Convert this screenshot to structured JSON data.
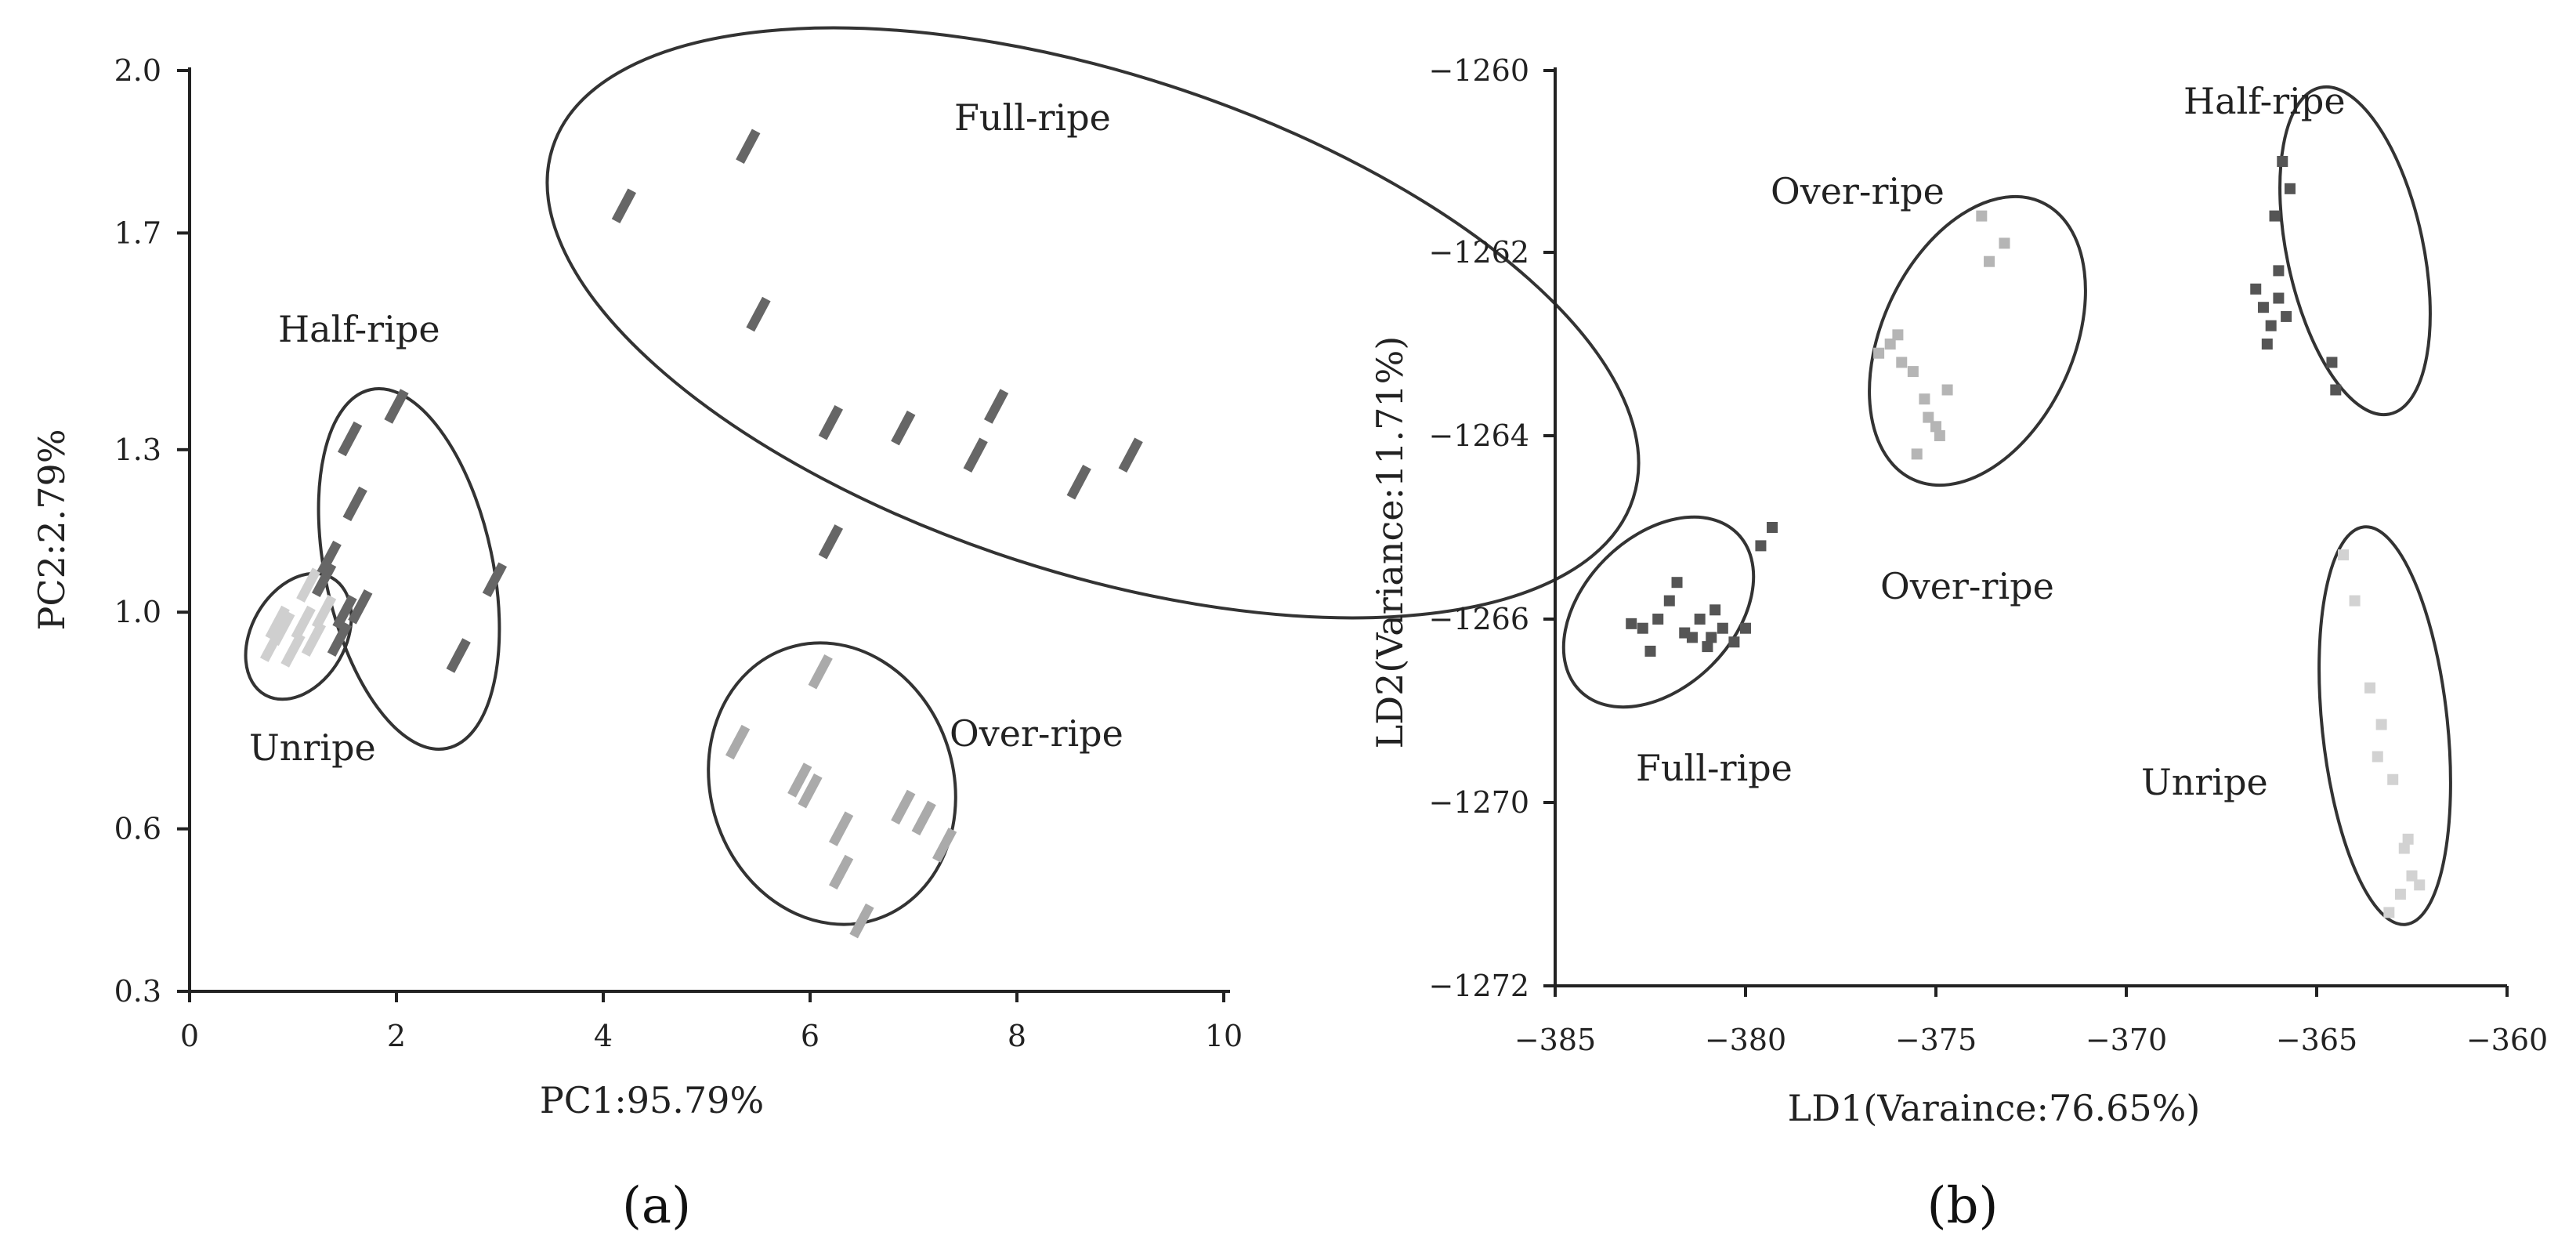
{
  "chart_data": [
    {
      "type": "scatter",
      "panel_label": "(a)",
      "xlabel": "PC1:95.79%",
      "ylabel": "PC2:2.79%",
      "xlim": [
        0,
        10
      ],
      "ylim": [
        0.3,
        2.0
      ],
      "xticks": [
        "0",
        "2",
        "4",
        "6",
        "8",
        "10"
      ],
      "yticks": [
        "0.3",
        "0.6",
        "1.0",
        "1.3",
        "1.7",
        "2.0"
      ],
      "series": [
        {
          "name": "Unripe",
          "color": "#cfcfcf",
          "x": [
            0.8,
            0.9,
            1.0,
            1.1,
            1.2,
            1.3,
            0.85,
            1.15
          ],
          "y": [
            0.94,
            0.97,
            0.93,
            0.98,
            0.95,
            1.0,
            0.98,
            1.05
          ]
        },
        {
          "name": "Half-ripe",
          "color": "#666666",
          "x": [
            1.3,
            1.35,
            1.45,
            1.5,
            1.6,
            1.55,
            1.65,
            2.0,
            2.6,
            2.95
          ],
          "y": [
            1.06,
            1.1,
            0.95,
            1.0,
            1.2,
            1.32,
            1.01,
            1.38,
            0.92,
            1.06
          ]
        },
        {
          "name": "Full-ripe",
          "color": "#666666",
          "x": [
            4.2,
            5.4,
            5.5,
            6.2,
            6.2,
            6.9,
            7.6,
            7.8,
            8.6,
            9.1
          ],
          "y": [
            1.75,
            1.86,
            1.55,
            1.35,
            1.13,
            1.34,
            1.29,
            1.38,
            1.24,
            1.29
          ]
        },
        {
          "name": "Over-ripe",
          "color": "#aaaaaa",
          "x": [
            5.3,
            5.9,
            6.0,
            6.3,
            6.5,
            6.9,
            7.1,
            7.3,
            6.1,
            6.3
          ],
          "y": [
            0.76,
            0.69,
            0.67,
            0.6,
            0.43,
            0.64,
            0.62,
            0.57,
            0.89,
            0.52
          ]
        }
      ],
      "annotations": [
        "Full-ripe",
        "Half-ripe",
        "Unripe",
        "Over-ripe"
      ]
    },
    {
      "type": "scatter",
      "panel_label": "(b)",
      "xlabel": "LD1(Varaince:76.65%)",
      "ylabel": "LD2(Variance:11.71%)",
      "xlim": [
        -385,
        -360
      ],
      "ylim": [
        -1272,
        -1260
      ],
      "xticks": [
        "−385",
        "−380",
        "−375",
        "−370",
        "−365",
        "−360"
      ],
      "yticks": [
        "−1260",
        "−1262",
        "−1264",
        "−1266",
        "−1270",
        "−1272"
      ],
      "series": [
        {
          "name": "Full-ripe",
          "color": "#555555",
          "x": [
            -383,
            -382.7,
            -382.3,
            -382,
            -381.6,
            -381.2,
            -380.9,
            -380.6,
            -380.3,
            -380,
            -381,
            -381.8,
            -379.6,
            -379.3,
            -380.8,
            -382.5,
            -381.4
          ],
          "y": [
            -1266.1,
            -1266.2,
            -1266.0,
            -1265.8,
            -1266.3,
            -1266.0,
            -1266.4,
            -1266.2,
            -1266.5,
            -1266.2,
            -1266.6,
            -1265.6,
            -1265.2,
            -1265.0,
            -1265.9,
            -1266.7,
            -1266.4
          ]
        },
        {
          "name": "Over-ripe",
          "color": "#b5b5b5",
          "x": [
            -376.5,
            -376.2,
            -375.9,
            -375.6,
            -375.3,
            -375.0,
            -374.7,
            -376.0,
            -375.5,
            -373.8,
            -373.2,
            -373.6,
            -374.9,
            -375.2
          ],
          "y": [
            -1263.1,
            -1263.0,
            -1263.2,
            -1263.3,
            -1263.6,
            -1263.9,
            -1263.5,
            -1262.9,
            -1264.2,
            -1261.6,
            -1261.9,
            -1262.1,
            -1264.0,
            -1263.8
          ]
        },
        {
          "name": "Half-ripe",
          "color": "#555555",
          "x": [
            -366.6,
            -366.4,
            -366.2,
            -366.0,
            -365.8,
            -366.3,
            -366.1,
            -365.9,
            -364.6,
            -364.5,
            -366.0,
            -365.7
          ],
          "y": [
            -1262.4,
            -1262.6,
            -1262.8,
            -1262.5,
            -1262.7,
            -1263.0,
            -1261.6,
            -1261.0,
            -1263.2,
            -1263.5,
            -1262.2,
            -1261.3
          ]
        },
        {
          "name": "Unripe",
          "color": "#d2d2d2",
          "x": [
            -364.3,
            -364.0,
            -363.6,
            -363.3,
            -363.0,
            -362.7,
            -362.5,
            -362.3,
            -363.4,
            -362.8,
            -362.6,
            -363.1
          ],
          "y": [
            -1265.3,
            -1265.8,
            -1267.5,
            -1268.3,
            -1269.5,
            -1270.5,
            -1270.8,
            -1270.9,
            -1269.0,
            -1271.0,
            -1270.4,
            -1271.2
          ]
        }
      ],
      "annotations": [
        "Half-ripe",
        "Over-ripe",
        "Over-ripe",
        "Full-ripe",
        "Unripe"
      ]
    }
  ]
}
